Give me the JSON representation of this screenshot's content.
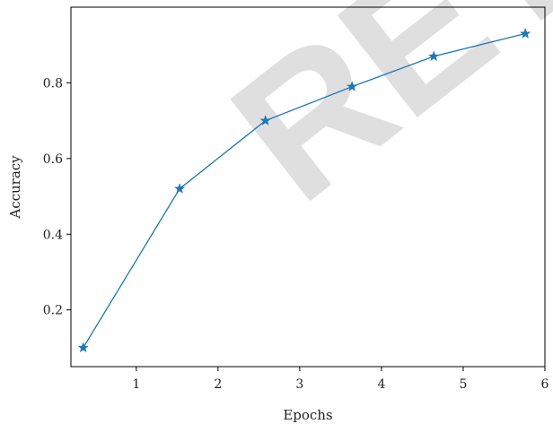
{
  "chart_data": {
    "type": "line",
    "title": "",
    "xlabel": "Epochs",
    "ylabel": "Accuracy",
    "xlim": [
      0.2,
      6.0
    ],
    "ylim": [
      0.05,
      1.0
    ],
    "x_ticks": [
      1,
      2,
      3,
      4,
      5,
      6
    ],
    "y_ticks": [
      0.2,
      0.4,
      0.6,
      0.8
    ],
    "x_tick_labels": [
      "1",
      "2",
      "3",
      "4",
      "5",
      "6"
    ],
    "y_tick_labels": [
      "0.2",
      "0.4",
      "0.6",
      "0.8"
    ],
    "grid": false,
    "series": [
      {
        "x": [
          0.35,
          1.53,
          2.58,
          3.64,
          4.64,
          5.76
        ],
        "y": [
          0.1,
          0.52,
          0.7,
          0.79,
          0.87,
          0.93
        ],
        "color": "#1f77b4",
        "marker": "star"
      }
    ]
  },
  "watermark": {
    "text": "RETRACTED",
    "color": "#000000"
  }
}
